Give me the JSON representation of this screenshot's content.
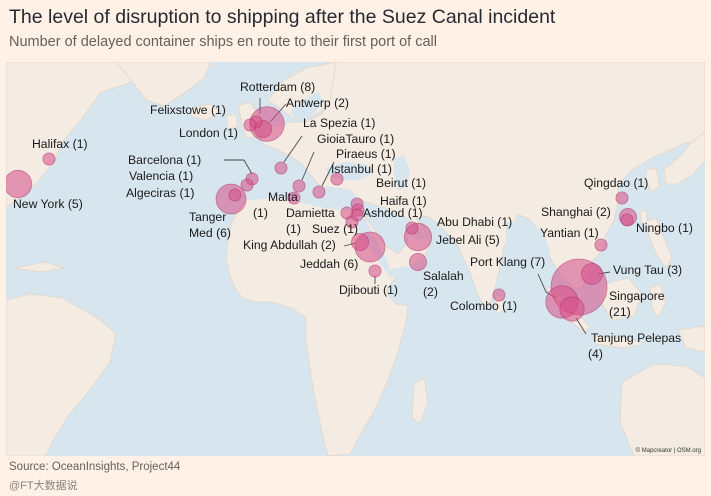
{
  "title": "The level of disruption to shipping after the Suez Canal incident",
  "subtitle": "Number of delayed container ships en route to their first port of call",
  "source": "Source: OceanInsights, Project44",
  "watermark": "@FT大数据说",
  "attribution": "© Mapcreator | OSM.org",
  "colors": {
    "background": "#FFF1E5",
    "sea": "#D7E6EE",
    "land": "#F4EBE2",
    "bubble": "#D64C86",
    "bubble_stroke": "#A83566"
  },
  "ports": [
    {
      "id": "new-york",
      "name": "New York",
      "ships": 5
    },
    {
      "id": "halifax",
      "name": "Halifax",
      "ships": 1
    },
    {
      "id": "rotterdam",
      "name": "Rotterdam",
      "ships": 8
    },
    {
      "id": "antwerp",
      "name": "Antwerp",
      "ships": 2
    },
    {
      "id": "felixstowe",
      "name": "Felixstowe",
      "ships": 1
    },
    {
      "id": "london",
      "name": "London",
      "ships": 1
    },
    {
      "id": "barcelona",
      "name": "Barcelona",
      "ships": 1
    },
    {
      "id": "valencia",
      "name": "Valencia",
      "ships": 1
    },
    {
      "id": "algeciras",
      "name": "Algeciras",
      "ships": 1
    },
    {
      "id": "tanger-med",
      "name": "Tanger Med",
      "ships": 6
    },
    {
      "id": "malta",
      "name": "Malta",
      "ships": 1
    },
    {
      "id": "la-spezia",
      "name": "La Spezia",
      "ships": 1
    },
    {
      "id": "gioia-tauro",
      "name": "GioiaTauro",
      "ships": 1
    },
    {
      "id": "piraeus",
      "name": "Piraeus",
      "ships": 1
    },
    {
      "id": "istanbul",
      "name": "Istanbul",
      "ships": 1
    },
    {
      "id": "beirut",
      "name": "Beirut",
      "ships": 1
    },
    {
      "id": "haifa",
      "name": "Haifa",
      "ships": 1
    },
    {
      "id": "ashdod",
      "name": "Ashdod",
      "ships": 1
    },
    {
      "id": "damietta",
      "name": "Damietta",
      "ships": 1
    },
    {
      "id": "suez",
      "name": "Suez",
      "ships": 1
    },
    {
      "id": "king-abdullah",
      "name": "King Abdullah",
      "ships": 2
    },
    {
      "id": "jeddah",
      "name": "Jeddah",
      "ships": 6
    },
    {
      "id": "djibouti",
      "name": "Djibouti",
      "ships": 1
    },
    {
      "id": "abu-dhabi",
      "name": "Abu Dhabi",
      "ships": 1
    },
    {
      "id": "jebel-ali",
      "name": "Jebel Ali",
      "ships": 5
    },
    {
      "id": "salalah",
      "name": "Salalah",
      "ships": 2
    },
    {
      "id": "colombo",
      "name": "Colombo",
      "ships": 1
    },
    {
      "id": "port-klang",
      "name": "Port Klang",
      "ships": 7
    },
    {
      "id": "singapore",
      "name": "Singapore",
      "ships": 21
    },
    {
      "id": "tanjung-pelepas",
      "name": "Tanjung Pelepas",
      "ships": 4
    },
    {
      "id": "vung-tau",
      "name": "Vung Tau",
      "ships": 3
    },
    {
      "id": "yantian",
      "name": "Yantian",
      "ships": 1
    },
    {
      "id": "shanghai",
      "name": "Shanghai",
      "ships": 2
    },
    {
      "id": "ningbo",
      "name": "Ningbo",
      "ships": 1
    },
    {
      "id": "qingdao",
      "name": "Qingdao",
      "ships": 1
    }
  ]
}
